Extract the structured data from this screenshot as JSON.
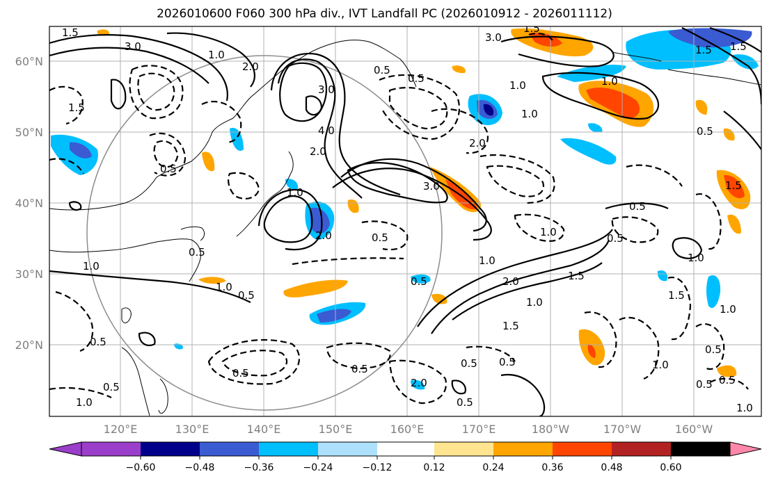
{
  "title": "2026010600 F060 300 hPa div., IVT Landfall PC (2026010912 - 2026011112)",
  "latitude_ticks": [
    "60°N",
    "50°N",
    "40°N",
    "30°N",
    "20°N"
  ],
  "longitude_ticks": [
    "120°E",
    "130°E",
    "140°E",
    "150°E",
    "160°E",
    "170°E",
    "180°W",
    "170°W",
    "160°W"
  ],
  "colorbar": {
    "colors": [
      "#9b3ec9",
      "#00008b",
      "#3a5bd1",
      "#00bfff",
      "#aee0fb",
      "#ffffff",
      "#ffe58f",
      "#ffa500",
      "#ff4500",
      "#b22222",
      "#ff88aa"
    ],
    "tick_labels": [
      "−0.60",
      "−0.48",
      "−0.36",
      "−0.24",
      "−0.12",
      "0.12",
      "0.24",
      "0.36",
      "0.48",
      "0.60"
    ]
  },
  "contour_labels": [
    "1.5",
    "3.0",
    "1.0",
    "2.0",
    "1.5",
    "3.0",
    "1.5",
    "0.5",
    "3.0",
    "4.0",
    "2.0",
    "3.0",
    "0.5",
    "2.0",
    "1.5",
    "1.5",
    "1.0",
    "1.0",
    "1.0",
    "1.5",
    "0.5",
    "0.5",
    "0.5",
    "0.5",
    "1.0",
    "0.5",
    "1.0",
    "2.0",
    "1.5",
    "2.0",
    "1.0",
    "1.5",
    "0.5",
    "1.0",
    "0.5",
    "0.5",
    "0.5",
    "1.0",
    "0.5",
    "0.5",
    "1.0",
    "0.5",
    "2.0",
    "0.5",
    "0.5",
    "0.5",
    "0.5",
    "1.0",
    "1.0",
    "0.5",
    "1.0",
    "1.5",
    "1.0",
    "0.5",
    "1.0"
  ]
}
